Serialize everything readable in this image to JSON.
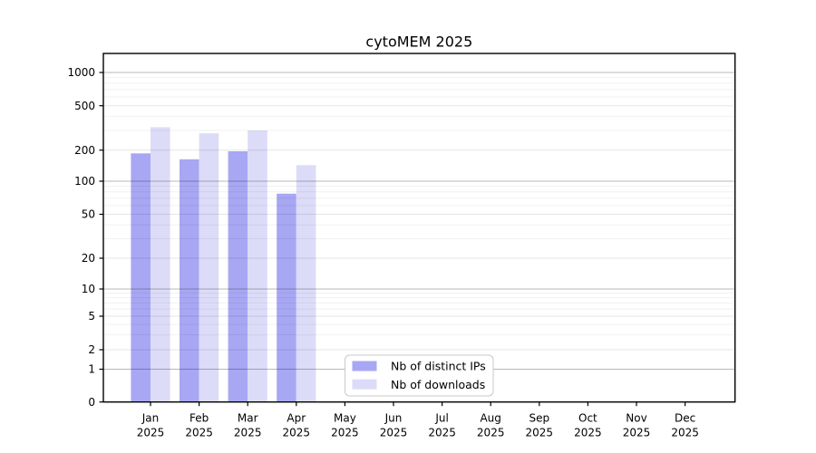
{
  "title": "cytoMEM 2025",
  "chart_data": {
    "type": "bar",
    "title": "cytoMEM 2025",
    "categories": [
      "Jan",
      "Feb",
      "Mar",
      "Apr",
      "May",
      "Jun",
      "Jul",
      "Aug",
      "Sep",
      "Oct",
      "Nov",
      "Dec"
    ],
    "category_year_line": "2025",
    "series": [
      {
        "name": "Nb of distinct IPs",
        "color": "#a7a7f3",
        "values": [
          186,
          163,
          195,
          77,
          null,
          null,
          null,
          null,
          null,
          null,
          null,
          null
        ]
      },
      {
        "name": "Nb of downloads",
        "color": "#dcdcf8",
        "values": [
          321,
          283,
          300,
          143,
          null,
          null,
          null,
          null,
          null,
          null,
          null,
          null
        ]
      }
    ],
    "y_axis": {
      "ticks": [
        0,
        1,
        2,
        5,
        10,
        20,
        50,
        100,
        200,
        500,
        1000
      ],
      "scale": "symlog",
      "range": [
        0,
        1500
      ]
    },
    "x_axis": {
      "tick_count": 12
    },
    "grid": {
      "major": true,
      "minor": true,
      "drawn_over_bars": true
    },
    "legend": {
      "position": "inside-bottom-center",
      "entries": [
        "Nb of distinct IPs",
        "Nb of downloads"
      ]
    },
    "style": {
      "grid_decade_color": "rgba(0,0,0,0.28)",
      "grid_mid_color": "rgba(0,0,0,0.10)",
      "grid_minor_color": "rgba(0,0,0,0.055)",
      "spine_color": "#000000",
      "legend_border_color": "#c9c9c9",
      "background": "#ffffff"
    }
  }
}
